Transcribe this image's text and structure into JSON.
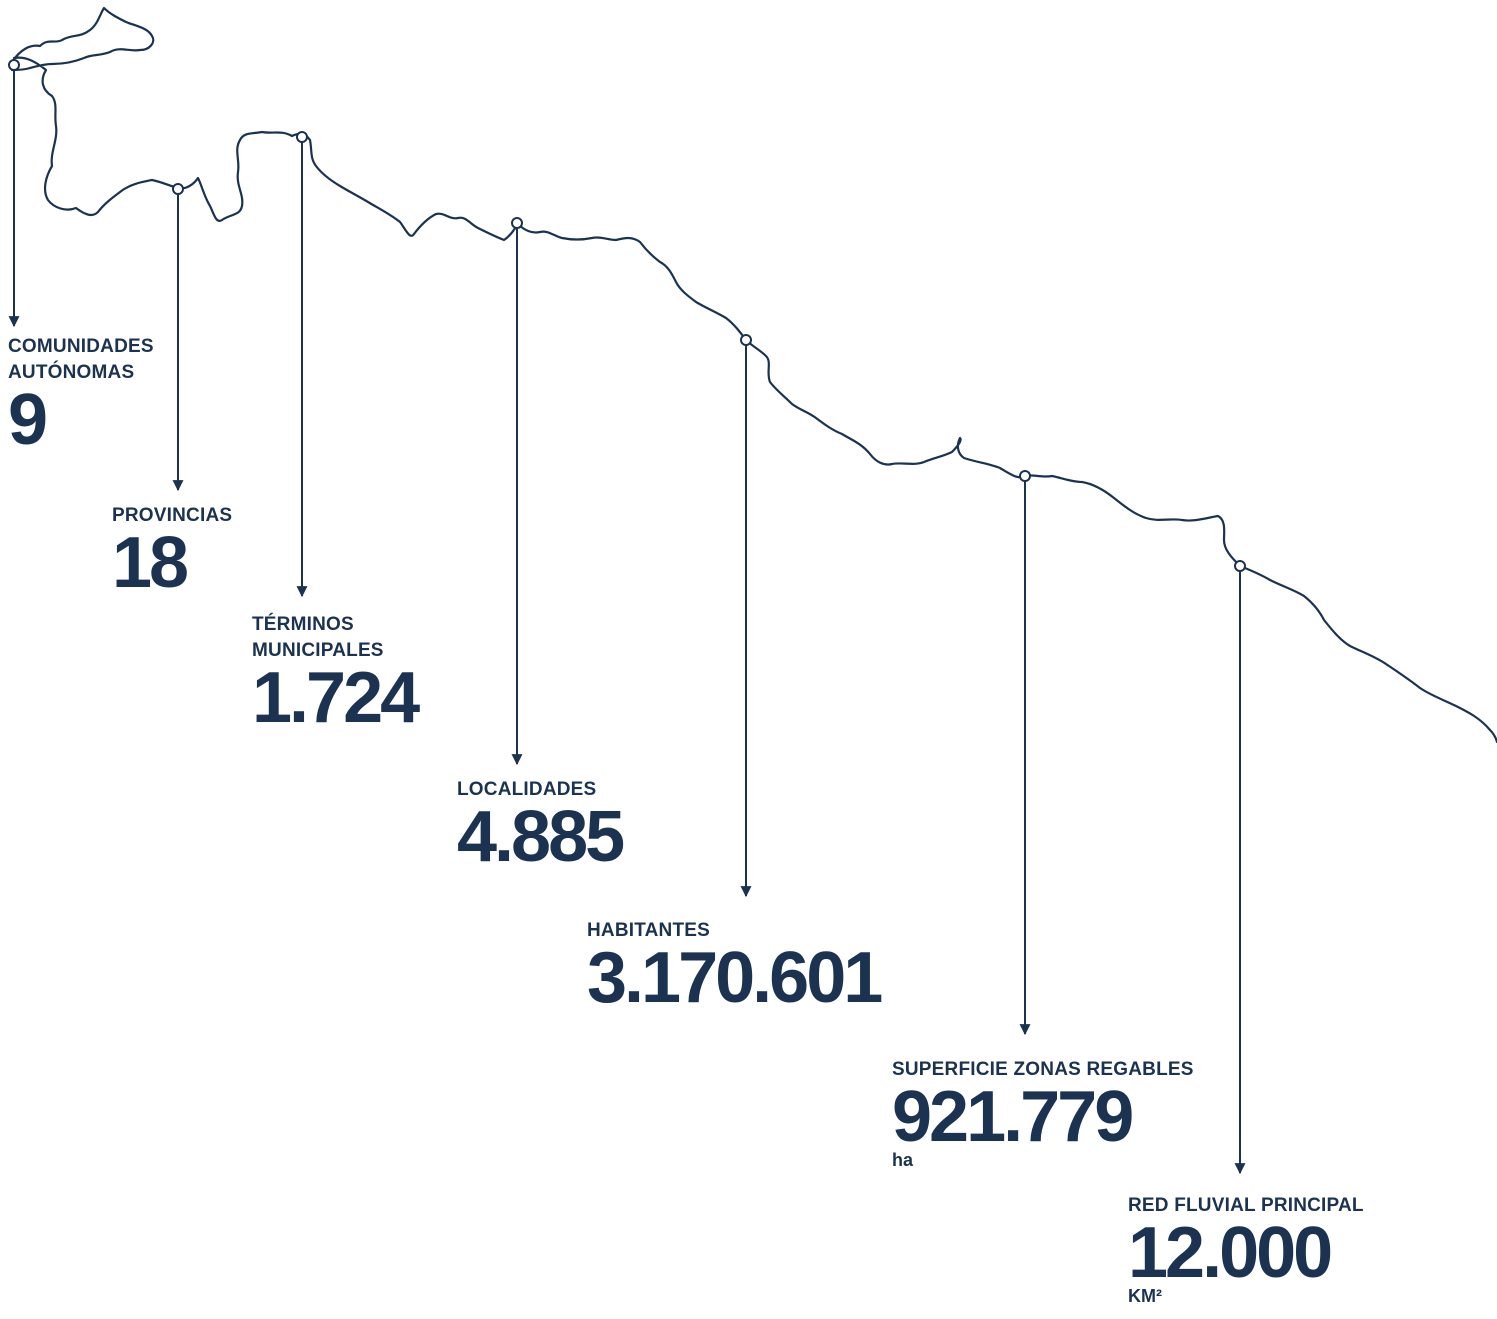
{
  "colors": {
    "ink": "#1b3350",
    "background": "#ffffff"
  },
  "stats": [
    {
      "id": "comunidades",
      "label": "COMUNIDADES\nAUTÓNOMAS",
      "value": "9",
      "unit": ""
    },
    {
      "id": "provincias",
      "label": "PROVINCIAS",
      "value": "18",
      "unit": ""
    },
    {
      "id": "terminos",
      "label": "TÉRMINOS\nMUNICIPALES",
      "value": "1.724",
      "unit": ""
    },
    {
      "id": "localidades",
      "label": "LOCALIDADES",
      "value": "4.885",
      "unit": ""
    },
    {
      "id": "habitantes",
      "label": "HABITANTES",
      "value": "3.170.601",
      "unit": ""
    },
    {
      "id": "superficie",
      "label": "SUPERFICIE ZONAS REGABLES",
      "value": "921.779",
      "unit": "ha"
    },
    {
      "id": "red-fluvial",
      "label": "RED FLUVIAL PRINCIPAL",
      "value": "12.000",
      "unit": "KM²"
    }
  ]
}
